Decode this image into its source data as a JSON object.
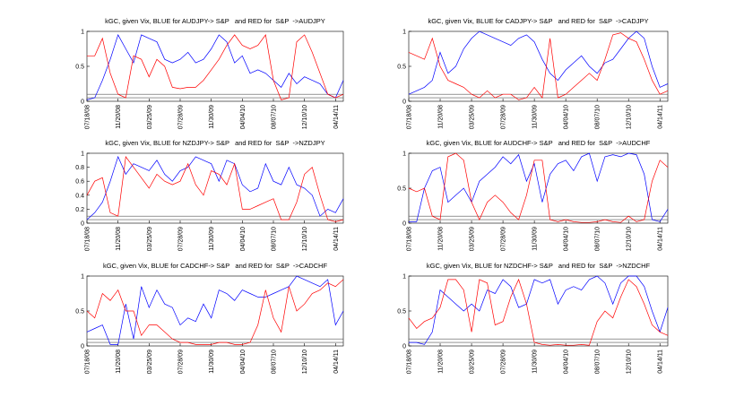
{
  "chart_data": [
    {
      "type": "line",
      "title": "kGC, given Vix, BLUE for AUDJPY-> S&P   and RED for  S&P  ->AUDJPY",
      "categories": [
        "07/18/08",
        null,
        null,
        null,
        "11/20/08",
        null,
        null,
        null,
        "03/25/09",
        null,
        null,
        null,
        "07/28/09",
        null,
        null,
        null,
        "11/30/09",
        null,
        null,
        null,
        "04/04/10",
        null,
        null,
        null,
        "08/07/10",
        null,
        null,
        null,
        "12/10/10",
        null,
        null,
        null,
        "04/14/11",
        null
      ],
      "series": [
        {
          "color": "#0000ff",
          "values": [
            0.02,
            0.05,
            0.3,
            0.6,
            0.95,
            0.75,
            0.55,
            0.95,
            0.9,
            0.85,
            0.6,
            0.55,
            0.6,
            0.7,
            0.55,
            0.6,
            0.75,
            0.95,
            0.85,
            0.55,
            0.65,
            0.4,
            0.45,
            0.4,
            0.3,
            0.2,
            0.4,
            0.25,
            0.35,
            0.3,
            0.25,
            0.1,
            0.05,
            0.3
          ]
        },
        {
          "color": "#ff0000",
          "values": [
            0.65,
            0.65,
            0.9,
            0.4,
            0.1,
            0.05,
            0.65,
            0.6,
            0.35,
            0.6,
            0.5,
            0.2,
            0.18,
            0.2,
            0.2,
            0.3,
            0.45,
            0.6,
            0.8,
            0.95,
            0.8,
            0.75,
            0.8,
            0.95,
            0.3,
            0.02,
            0.05,
            0.85,
            0.95,
            0.7,
            0.4,
            0.1,
            0.05,
            0.1
          ]
        }
      ],
      "ylim": [
        0,
        1
      ],
      "yticks": [
        0,
        0.5,
        1
      ],
      "reference_lines": [
        0.05,
        0.1
      ]
    },
    {
      "type": "line",
      "title": "kGC, given Vix, BLUE for CADJPY-> S&P   and RED for  S&P  ->CADJPY",
      "categories": [
        "07/18/08",
        null,
        null,
        null,
        "11/20/08",
        null,
        null,
        null,
        "03/25/09",
        null,
        null,
        null,
        "07/28/09",
        null,
        null,
        null,
        "11/30/09",
        null,
        null,
        null,
        "04/04/10",
        null,
        null,
        null,
        "08/07/10",
        null,
        null,
        null,
        "12/10/10",
        null,
        null,
        null,
        "04/14/11",
        null
      ],
      "series": [
        {
          "color": "#0000ff",
          "values": [
            0.1,
            0.15,
            0.2,
            0.3,
            0.7,
            0.4,
            0.5,
            0.75,
            0.9,
            1.0,
            0.95,
            0.9,
            0.85,
            0.8,
            0.9,
            0.95,
            0.85,
            0.6,
            0.4,
            0.3,
            0.45,
            0.55,
            0.65,
            0.5,
            0.4,
            0.55,
            0.6,
            0.75,
            0.9,
            1.0,
            0.9,
            0.5,
            0.2,
            0.25
          ]
        },
        {
          "color": "#ff0000",
          "values": [
            0.7,
            0.65,
            0.6,
            0.9,
            0.5,
            0.3,
            0.25,
            0.2,
            0.1,
            0.05,
            0.15,
            0.05,
            0.1,
            0.1,
            0.02,
            0.05,
            0.2,
            0.05,
            0.9,
            0.05,
            0.1,
            0.2,
            0.3,
            0.4,
            0.3,
            0.6,
            0.95,
            0.98,
            0.9,
            0.85,
            0.6,
            0.3,
            0.1,
            0.15
          ]
        }
      ],
      "ylim": [
        0,
        1
      ],
      "yticks": [
        0,
        0.5,
        1
      ],
      "reference_lines": [
        0.05,
        0.1
      ]
    },
    {
      "type": "line",
      "title": "kGC, given Vix, BLUE for NZDJPY-> S&P   and RED for  S&P  ->NZDJPY",
      "categories": [
        "07/18/08",
        null,
        null,
        null,
        "11/20/08",
        null,
        null,
        null,
        "03/25/09",
        null,
        null,
        null,
        "07/28/09",
        null,
        null,
        null,
        "11/30/09",
        null,
        null,
        null,
        "04/04/10",
        null,
        null,
        null,
        "08/07/10",
        null,
        null,
        null,
        "12/10/10",
        null,
        null,
        null,
        "04/14/11",
        null
      ],
      "series": [
        {
          "color": "#0000ff",
          "values": [
            0.05,
            0.15,
            0.3,
            0.6,
            0.95,
            0.7,
            0.85,
            0.8,
            0.75,
            0.9,
            0.7,
            0.6,
            0.75,
            0.8,
            0.95,
            0.9,
            0.85,
            0.6,
            0.9,
            0.85,
            0.55,
            0.45,
            0.5,
            0.85,
            0.6,
            0.55,
            0.8,
            0.55,
            0.5,
            0.4,
            0.1,
            0.2,
            0.15,
            0.35
          ]
        },
        {
          "color": "#ff0000",
          "values": [
            0.4,
            0.6,
            0.65,
            0.15,
            0.1,
            0.95,
            0.8,
            0.65,
            0.5,
            0.7,
            0.6,
            0.55,
            0.6,
            0.85,
            0.55,
            0.4,
            0.75,
            0.7,
            0.55,
            0.85,
            0.2,
            0.2,
            0.25,
            0.3,
            0.35,
            0.05,
            0.05,
            0.3,
            0.7,
            0.8,
            0.4,
            0.05,
            0.02,
            0.05
          ]
        }
      ],
      "ylim": [
        0,
        1
      ],
      "yticks": [
        0,
        0.2,
        0.4,
        0.6,
        0.8,
        1
      ],
      "reference_lines": [
        0.05,
        0.1
      ]
    },
    {
      "type": "line",
      "title": "kGC, given Vix, BLUE for AUDCHF-> S&P   and RED for  S&P  ->AUDCHF",
      "categories": [
        "07/18/08",
        null,
        null,
        null,
        "11/20/08",
        null,
        null,
        null,
        "03/25/09",
        null,
        null,
        null,
        "07/28/09",
        null,
        null,
        null,
        "11/30/09",
        null,
        null,
        null,
        "04/04/10",
        null,
        null,
        null,
        "08/07/10",
        null,
        null,
        null,
        "12/10/10",
        null,
        null,
        null,
        "04/14/11",
        null
      ],
      "series": [
        {
          "color": "#0000ff",
          "values": [
            0.02,
            0.02,
            0.5,
            0.75,
            0.8,
            0.3,
            0.4,
            0.5,
            0.3,
            0.6,
            0.7,
            0.8,
            0.95,
            0.85,
            0.98,
            0.6,
            0.85,
            0.3,
            0.7,
            0.85,
            0.9,
            0.75,
            0.95,
            1.0,
            0.6,
            0.95,
            0.98,
            0.95,
            1.0,
            0.98,
            0.7,
            0.05,
            0.02,
            0.2
          ]
        },
        {
          "color": "#ff0000",
          "values": [
            0.5,
            0.45,
            0.5,
            0.1,
            0.05,
            0.95,
            1.0,
            0.9,
            0.3,
            0.05,
            0.3,
            0.4,
            0.3,
            0.15,
            0.05,
            0.4,
            0.9,
            0.9,
            0.05,
            0.02,
            0.05,
            0.02,
            0.01,
            0.01,
            0.02,
            0.05,
            0.02,
            0.01,
            0.1,
            0.02,
            0.05,
            0.6,
            0.9,
            0.8
          ]
        }
      ],
      "ylim": [
        0,
        1
      ],
      "yticks": [
        0,
        0.5,
        1
      ],
      "reference_lines": [
        0.05,
        0.1
      ]
    },
    {
      "type": "line",
      "title": "kGC, given Vix, BLUE for CADCHF-> S&P   and RED for  S&P  ->CADCHF",
      "categories": [
        "07/18/08",
        null,
        null,
        null,
        "11/20/08",
        null,
        null,
        null,
        "03/25/09",
        null,
        null,
        null,
        "07/28/09",
        null,
        null,
        null,
        "11/30/09",
        null,
        null,
        null,
        "04/04/10",
        null,
        null,
        null,
        "08/07/10",
        null,
        null,
        null,
        "12/10/10",
        null,
        null,
        null,
        "04/14/11",
        null
      ],
      "series": [
        {
          "color": "#0000ff",
          "values": [
            0.2,
            0.25,
            0.3,
            0.02,
            0.02,
            0.6,
            0.1,
            0.85,
            0.55,
            0.8,
            0.6,
            0.55,
            0.3,
            0.4,
            0.35,
            0.6,
            0.4,
            0.8,
            0.75,
            0.65,
            0.8,
            0.75,
            0.7,
            0.7,
            0.75,
            0.8,
            0.85,
            1.0,
            0.95,
            0.9,
            0.85,
            0.95,
            0.3,
            0.5
          ]
        },
        {
          "color": "#ff0000",
          "values": [
            0.5,
            0.4,
            0.75,
            0.65,
            0.8,
            0.5,
            0.5,
            0.15,
            0.3,
            0.3,
            0.2,
            0.1,
            0.05,
            0.05,
            0.02,
            0.02,
            0.02,
            0.05,
            0.05,
            0.02,
            0.02,
            0.05,
            0.3,
            0.8,
            0.4,
            0.2,
            0.85,
            0.5,
            0.6,
            0.75,
            0.8,
            0.9,
            0.85,
            0.95
          ]
        }
      ],
      "ylim": [
        0,
        1
      ],
      "yticks": [
        0,
        0.5,
        1
      ],
      "reference_lines": [
        0.05,
        0.1
      ]
    },
    {
      "type": "line",
      "title": "kGC, given Vix, BLUE for NZDCHF-> S&P   and RED for  S&P  ->NZDCHF",
      "categories": [
        "07/18/08",
        null,
        null,
        null,
        "11/20/08",
        null,
        null,
        null,
        "03/25/09",
        null,
        null,
        null,
        "07/28/09",
        null,
        null,
        null,
        "11/30/09",
        null,
        null,
        null,
        "04/04/10",
        null,
        null,
        null,
        "08/07/10",
        null,
        null,
        null,
        "12/10/10",
        null,
        null,
        null,
        "04/14/11",
        null
      ],
      "series": [
        {
          "color": "#0000ff",
          "values": [
            0.05,
            0.05,
            0.02,
            0.2,
            0.8,
            0.7,
            0.6,
            0.5,
            0.6,
            0.5,
            0.8,
            0.75,
            0.95,
            0.85,
            0.55,
            0.6,
            0.95,
            0.9,
            0.95,
            0.6,
            0.8,
            0.85,
            0.8,
            0.95,
            1.0,
            0.9,
            0.6,
            0.9,
            1.0,
            1.0,
            0.85,
            0.5,
            0.2,
            0.55
          ]
        },
        {
          "color": "#ff0000",
          "values": [
            0.4,
            0.25,
            0.35,
            0.4,
            0.55,
            0.95,
            0.95,
            0.8,
            0.2,
            0.95,
            0.9,
            0.3,
            0.35,
            0.7,
            0.95,
            0.6,
            0.05,
            0.02,
            0.01,
            0.02,
            0.01,
            0.01,
            0.02,
            0.01,
            0.35,
            0.5,
            0.4,
            0.7,
            0.95,
            0.85,
            0.6,
            0.3,
            0.2,
            0.15
          ]
        }
      ],
      "ylim": [
        0,
        1
      ],
      "yticks": [
        0,
        0.5,
        1
      ],
      "reference_lines": [
        0.05,
        0.1
      ]
    }
  ]
}
